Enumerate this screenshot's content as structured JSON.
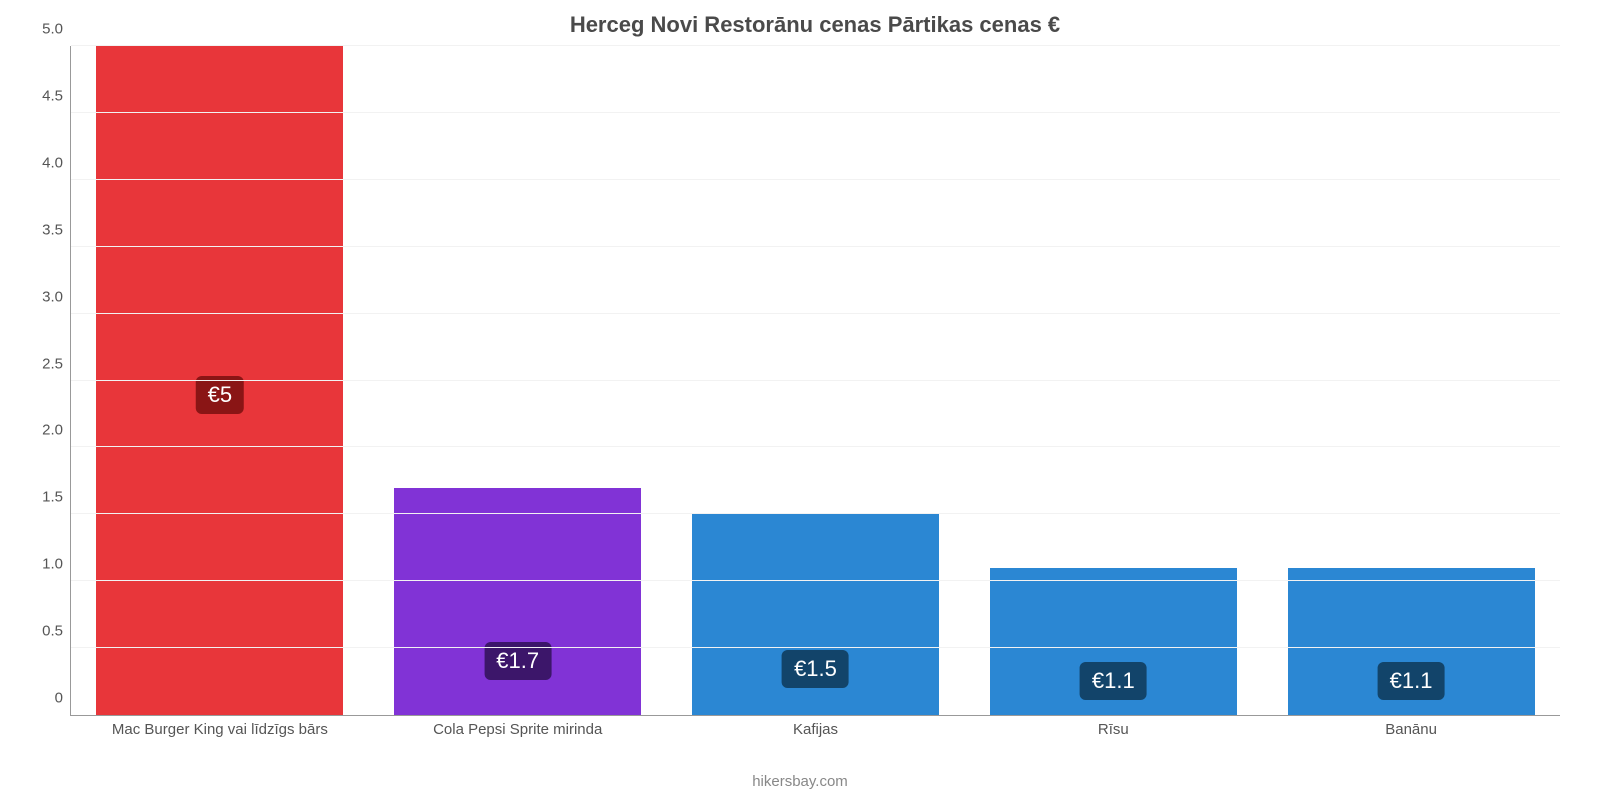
{
  "chart": {
    "type": "bar",
    "title": "Herceg Novi Restorānu cenas Pārtikas cenas €",
    "title_fontsize": 22,
    "title_color": "#4a4a4a",
    "background_color": "#ffffff",
    "grid_color": "#f2f2f2",
    "axis_color": "#999999",
    "label_fontsize": 15,
    "label_color": "#555555",
    "ylim": [
      0,
      5.0
    ],
    "yticks": [
      0,
      0.5,
      1.0,
      1.5,
      2.0,
      2.5,
      3.0,
      3.5,
      4.0,
      4.5,
      5.0
    ],
    "ytick_labels": [
      "0",
      "0.5",
      "1.0",
      "1.5",
      "2.0",
      "2.5",
      "3.0",
      "3.5",
      "4.0",
      "4.5",
      "5.0"
    ],
    "bar_width_pct": 83,
    "value_label_fontsize": 22,
    "value_label_color": "#ffffff",
    "categories": [
      "Mac Burger King vai līdzīgs bārs",
      "Cola Pepsi Sprite mirinda",
      "Kafijas",
      "Rīsu",
      "Banānu"
    ],
    "values": [
      5.0,
      1.7,
      1.5,
      1.1,
      1.1
    ],
    "display_values": [
      "€5",
      "€1.7",
      "€1.5",
      "€1.1",
      "€1.1"
    ],
    "bar_colors": [
      "#e8363a",
      "#8133d6",
      "#2b87d3",
      "#2b87d3",
      "#2b87d3"
    ],
    "badge_colors": [
      "#8a1515",
      "#3c166a",
      "#12446a",
      "#12446a",
      "#12446a"
    ],
    "footer": "hikersbay.com",
    "footer_color": "#888888",
    "footer_fontsize": 15
  }
}
